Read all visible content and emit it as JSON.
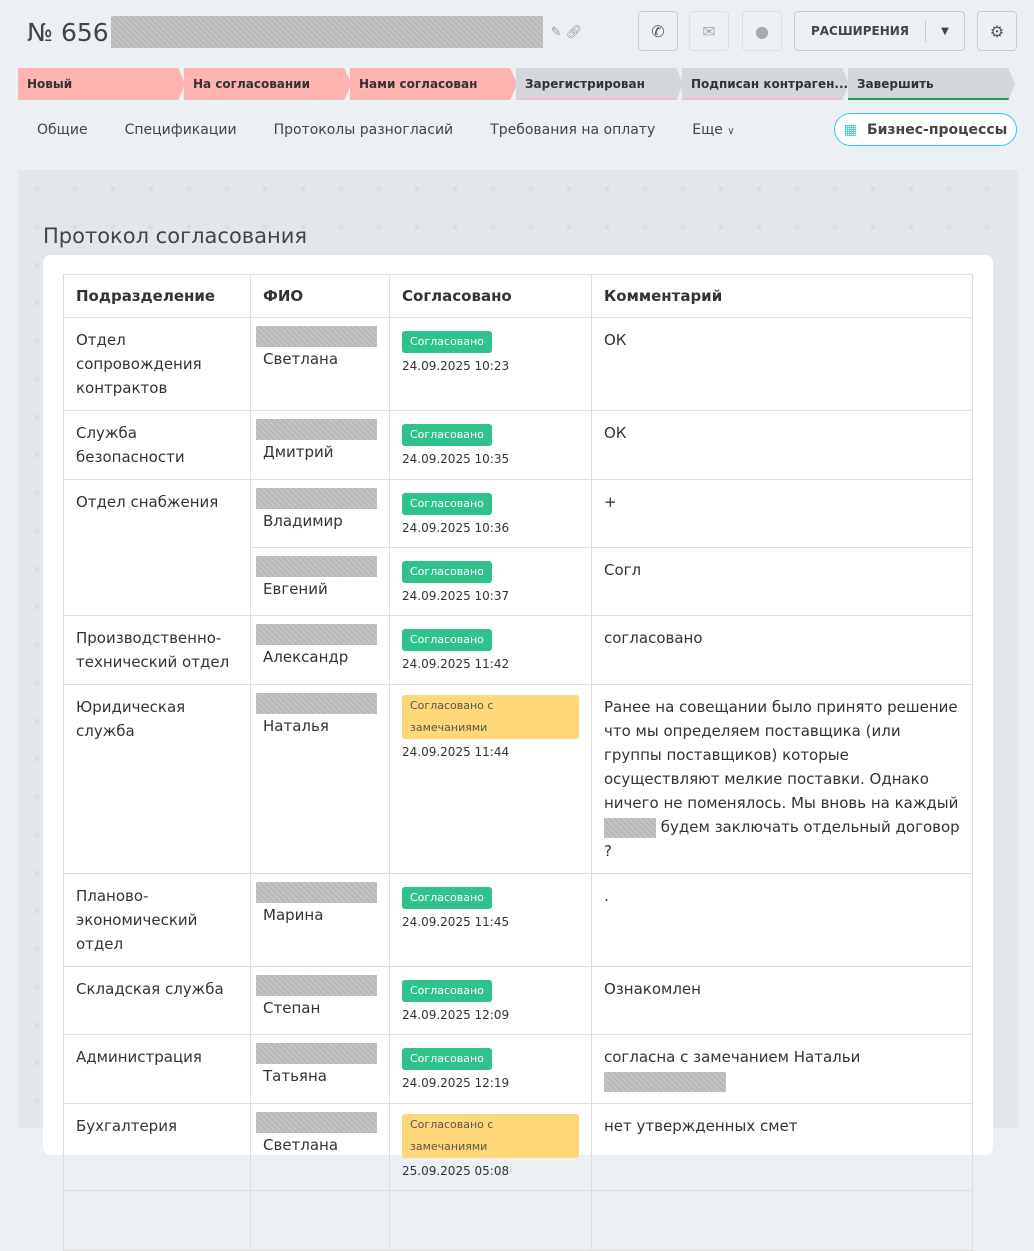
{
  "header": {
    "doc_number": "№ 656",
    "extensions_label": "РАСШИРЕНИЯ",
    "icons": [
      "phone-icon",
      "mail-icon",
      "chat-icon",
      "gear-icon"
    ]
  },
  "stages": [
    {
      "label": "Новый",
      "state": "done"
    },
    {
      "label": "На согласовании",
      "state": "done"
    },
    {
      "label": "Нами согласован",
      "state": "done"
    },
    {
      "label": "Зарегистрирован",
      "state": "todo"
    },
    {
      "label": "Подписан контраген...",
      "state": "todo"
    },
    {
      "label": "Завершить",
      "state": "last"
    }
  ],
  "tabs": [
    "Общие",
    "Спецификации",
    "Протоколы разногласий",
    "Требования на оплату",
    "Еще"
  ],
  "bp_button": "Бизнес-процессы",
  "section_title": "Протокол согласования",
  "table": {
    "headers": [
      "Подразделение",
      "ФИО",
      "Согласовано",
      "Комментарий"
    ],
    "rows": [
      {
        "dept": "Отдел сопровождения контрактов",
        "name": "Светлана",
        "status": "Согласовано",
        "type": "ok",
        "date": "24.09.2025 10:23",
        "comment": "ОК",
        "h": 89
      },
      {
        "dept": "Служба безопасности",
        "name": "Дмитрий",
        "status": "Согласовано",
        "type": "ok",
        "date": "24.09.2025 10:35",
        "comment": "ОК",
        "h": 67
      },
      {
        "dept": "Отдел снабжения",
        "span": 2,
        "name": "Владимир",
        "status": "Согласовано",
        "type": "ok",
        "date": "24.09.2025 10:36",
        "comment": "+",
        "h": 66
      },
      {
        "name": "Евгений",
        "status": "Согласовано",
        "type": "ok",
        "date": "24.09.2025 10:37",
        "comment": "Согл",
        "h": 67
      },
      {
        "dept": "Производственно-технический отдел",
        "name": "Александр",
        "status": "Согласовано",
        "type": "ok",
        "date": "24.09.2025 11:42",
        "comment": "согласовано",
        "h": 66
      },
      {
        "dept": "Юридическая служба",
        "name": "Наталья",
        "status": "Согласовано с замечаниями",
        "type": "warn",
        "date": "24.09.2025 11:44",
        "comment": "Ранее на совещании было принято решение что мы определяем поставщика (или группы поставщиков) которые осуществляют мелкие поставки. Однако ничего не поменялось. Мы вновь на каждый",
        "redact_w": 52,
        "comment_after": " будем заключать отдельный договор ?",
        "h": 161
      },
      {
        "dept": "Планово-экономический отдел",
        "name": "Марина",
        "status": "Согласовано",
        "type": "ok",
        "date": "24.09.2025 11:45",
        "comment": ".",
        "h": 89
      },
      {
        "dept": "Складская служба",
        "name": "Степан",
        "status": "Согласовано",
        "type": "ok",
        "date": "24.09.2025 12:09",
        "comment": "Ознакомлен",
        "h": 67
      },
      {
        "dept": "Администрация",
        "name": "Татьяна",
        "status": "Согласовано",
        "type": "ok",
        "date": "24.09.2025 12:19",
        "comment": "согласна с замечанием Натальи",
        "redact_w": 122,
        "comment_after": "",
        "h": 66
      },
      {
        "dept": "Бухгалтерия",
        "name": "Светлана",
        "status": "Согласовано с замечаниями",
        "type": "warn",
        "date": "25.09.2025 05:08",
        "comment": "нет утвержденных смет",
        "h": 67
      }
    ]
  }
}
